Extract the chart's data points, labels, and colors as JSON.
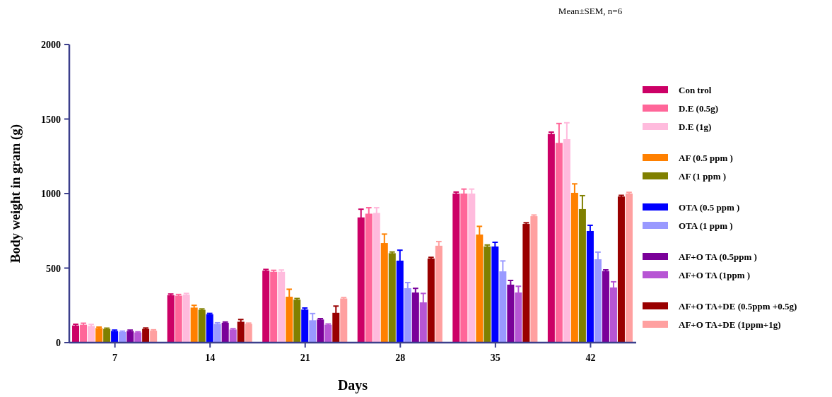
{
  "chart_data": {
    "type": "bar",
    "xlabel": "Days",
    "ylabel": "Body weight in gram (g)",
    "annotations": [
      "Mean±SEM, n=6"
    ],
    "categories": [
      "7",
      "14",
      "21",
      "28",
      "35",
      "42"
    ],
    "ylim": [
      0,
      2000
    ],
    "yticks": [
      0,
      500,
      1000,
      1500,
      2000
    ],
    "legend": "right",
    "grid": false,
    "series": [
      {
        "name": "Con trol",
        "color": "#cc0066",
        "values": [
          115,
          318,
          483,
          840,
          1000,
          1400
        ],
        "errors": [
          8,
          8,
          8,
          55,
          10,
          12
        ]
      },
      {
        "name": "D.E (0.5g)",
        "color": "#ff6699",
        "values": [
          120,
          315,
          475,
          865,
          1000,
          1340
        ],
        "errors": [
          10,
          8,
          10,
          40,
          30,
          130
        ]
      },
      {
        "name": "D.E (1g)",
        "color": "#ffbbdd",
        "values": [
          112,
          322,
          475,
          870,
          1000,
          1365
        ],
        "errors": [
          10,
          8,
          12,
          35,
          30,
          110
        ]
      },
      {
        "name": "AF (0.5 ppm )",
        "color": "#ff8000",
        "values": [
          98,
          235,
          308,
          668,
          725,
          1005
        ],
        "errors": [
          6,
          15,
          50,
          60,
          55,
          60
        ]
      },
      {
        "name": "AF (1 ppm )",
        "color": "#808000",
        "values": [
          92,
          220,
          288,
          600,
          645,
          896
        ],
        "errors": [
          5,
          6,
          8,
          8,
          10,
          90
        ]
      },
      {
        "name": "OTA (0.5 ppm )",
        "color": "#0000ff",
        "values": [
          78,
          190,
          222,
          550,
          645,
          749
        ],
        "errors": [
          6,
          6,
          10,
          70,
          28,
          38
        ]
      },
      {
        "name": "OTA (1 ppm )",
        "color": "#9999ff",
        "values": [
          72,
          125,
          150,
          365,
          478,
          559
        ],
        "errors": [
          5,
          8,
          45,
          38,
          70,
          48
        ]
      },
      {
        "name": "AF+O TA (0.5ppm )",
        "color": "#7a0099",
        "values": [
          78,
          133,
          155,
          336,
          389,
          480
        ],
        "errors": [
          6,
          5,
          6,
          28,
          28,
          8
        ]
      },
      {
        "name": "AF+O TA (1ppm )",
        "color": "#b755d4",
        "values": [
          68,
          88,
          120,
          270,
          336,
          370
        ],
        "errors": [
          4,
          5,
          5,
          60,
          42,
          38
        ]
      },
      {
        "name": "AF+O TA+DE (0.5ppm +0.5g)",
        "color": "#990000",
        "values": [
          92,
          140,
          200,
          564,
          796,
          980
        ],
        "errors": [
          6,
          15,
          45,
          8,
          8,
          8
        ]
      },
      {
        "name": "AF+O TA+DE (1ppm+1g)",
        "color": "#ffa0a0",
        "values": [
          80,
          126,
          296,
          650,
          848,
          1000
        ],
        "errors": [
          6,
          5,
          6,
          28,
          8,
          8
        ]
      }
    ]
  }
}
